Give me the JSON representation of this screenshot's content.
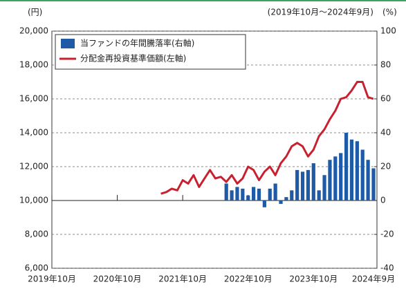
{
  "chart_data": {
    "type": "bar_line",
    "yaxis_unit": "(円)",
    "y2axis_unit": "(%)",
    "period": "(2019年10月～2024年9月)",
    "categories": [
      "2019年10月",
      null,
      null,
      null,
      null,
      null,
      null,
      null,
      null,
      null,
      null,
      null,
      "2020年10月",
      null,
      null,
      null,
      null,
      null,
      null,
      null,
      null,
      null,
      null,
      null,
      "2021年10月",
      null,
      null,
      null,
      null,
      null,
      null,
      null,
      null,
      null,
      null,
      null,
      "2022年10月",
      null,
      null,
      null,
      null,
      null,
      null,
      null,
      null,
      null,
      null,
      null,
      "2023年10月",
      null,
      null,
      null,
      null,
      null,
      null,
      null,
      null,
      null,
      null,
      "2024年9月"
    ],
    "series": [
      {
        "name": "当ファンドの年間騰落率(右軸)",
        "type": "bar",
        "axis": "y2",
        "color": "#1f5aa6",
        "values": [
          null,
          null,
          null,
          null,
          null,
          null,
          null,
          null,
          null,
          null,
          null,
          null,
          null,
          null,
          null,
          null,
          null,
          null,
          null,
          null,
          null,
          null,
          null,
          null,
          null,
          null,
          null,
          null,
          null,
          null,
          null,
          null,
          10,
          6,
          8,
          7,
          3,
          8,
          7,
          -4,
          7,
          10,
          -2,
          2,
          6,
          18,
          17,
          18,
          22,
          6,
          15,
          24,
          26,
          28,
          40,
          36,
          35,
          30,
          24,
          19
        ]
      },
      {
        "name": "分配金再投資基準価額(左軸)",
        "type": "line",
        "axis": "y",
        "color": "#c8202f",
        "values": [
          null,
          null,
          null,
          null,
          null,
          null,
          null,
          null,
          null,
          null,
          null,
          null,
          null,
          null,
          null,
          null,
          null,
          null,
          null,
          null,
          10400,
          10500,
          10700,
          10600,
          11200,
          11000,
          11500,
          10800,
          11300,
          11800,
          11300,
          11400,
          11100,
          11500,
          11000,
          11300,
          12000,
          11800,
          11200,
          11700,
          12000,
          11500,
          12200,
          12600,
          13200,
          13400,
          13200,
          12600,
          13000,
          13800,
          14200,
          14800,
          15300,
          16000,
          16100,
          16500,
          17000,
          17000,
          16100,
          16000
        ]
      }
    ],
    "ylim": [
      6000,
      20000
    ],
    "yticks": [
      {
        "value": 6000,
        "label": "6,000"
      },
      {
        "value": 8000,
        "label": "8,000"
      },
      {
        "value": 10000,
        "label": "10,000"
      },
      {
        "value": 12000,
        "label": "12,000"
      },
      {
        "value": 14000,
        "label": "14,000"
      },
      {
        "value": 16000,
        "label": "16,000"
      },
      {
        "value": 18000,
        "label": "18,000"
      },
      {
        "value": 20000,
        "label": "20,000"
      }
    ],
    "y2lim": [
      -40,
      100
    ],
    "y2ticks": [
      -40,
      -20,
      0,
      20,
      40,
      60,
      80,
      100
    ],
    "grid": true,
    "legend": "upper left"
  }
}
